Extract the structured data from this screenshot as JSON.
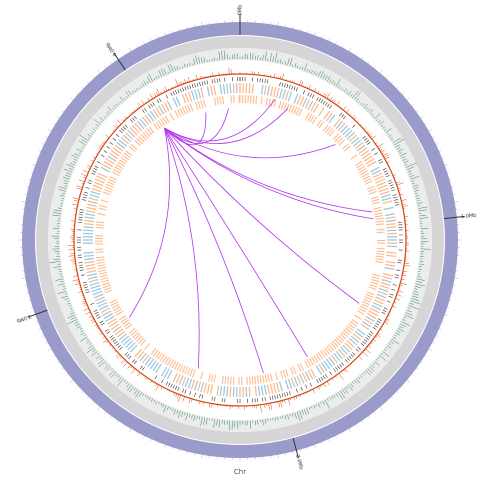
{
  "scale": {
    "labels": [
      "0Mb",
      "1.0Mb",
      "2.0Mb",
      "3.0Mb",
      "4.0Mb"
    ],
    "axis_label": "Chr"
  }
}
